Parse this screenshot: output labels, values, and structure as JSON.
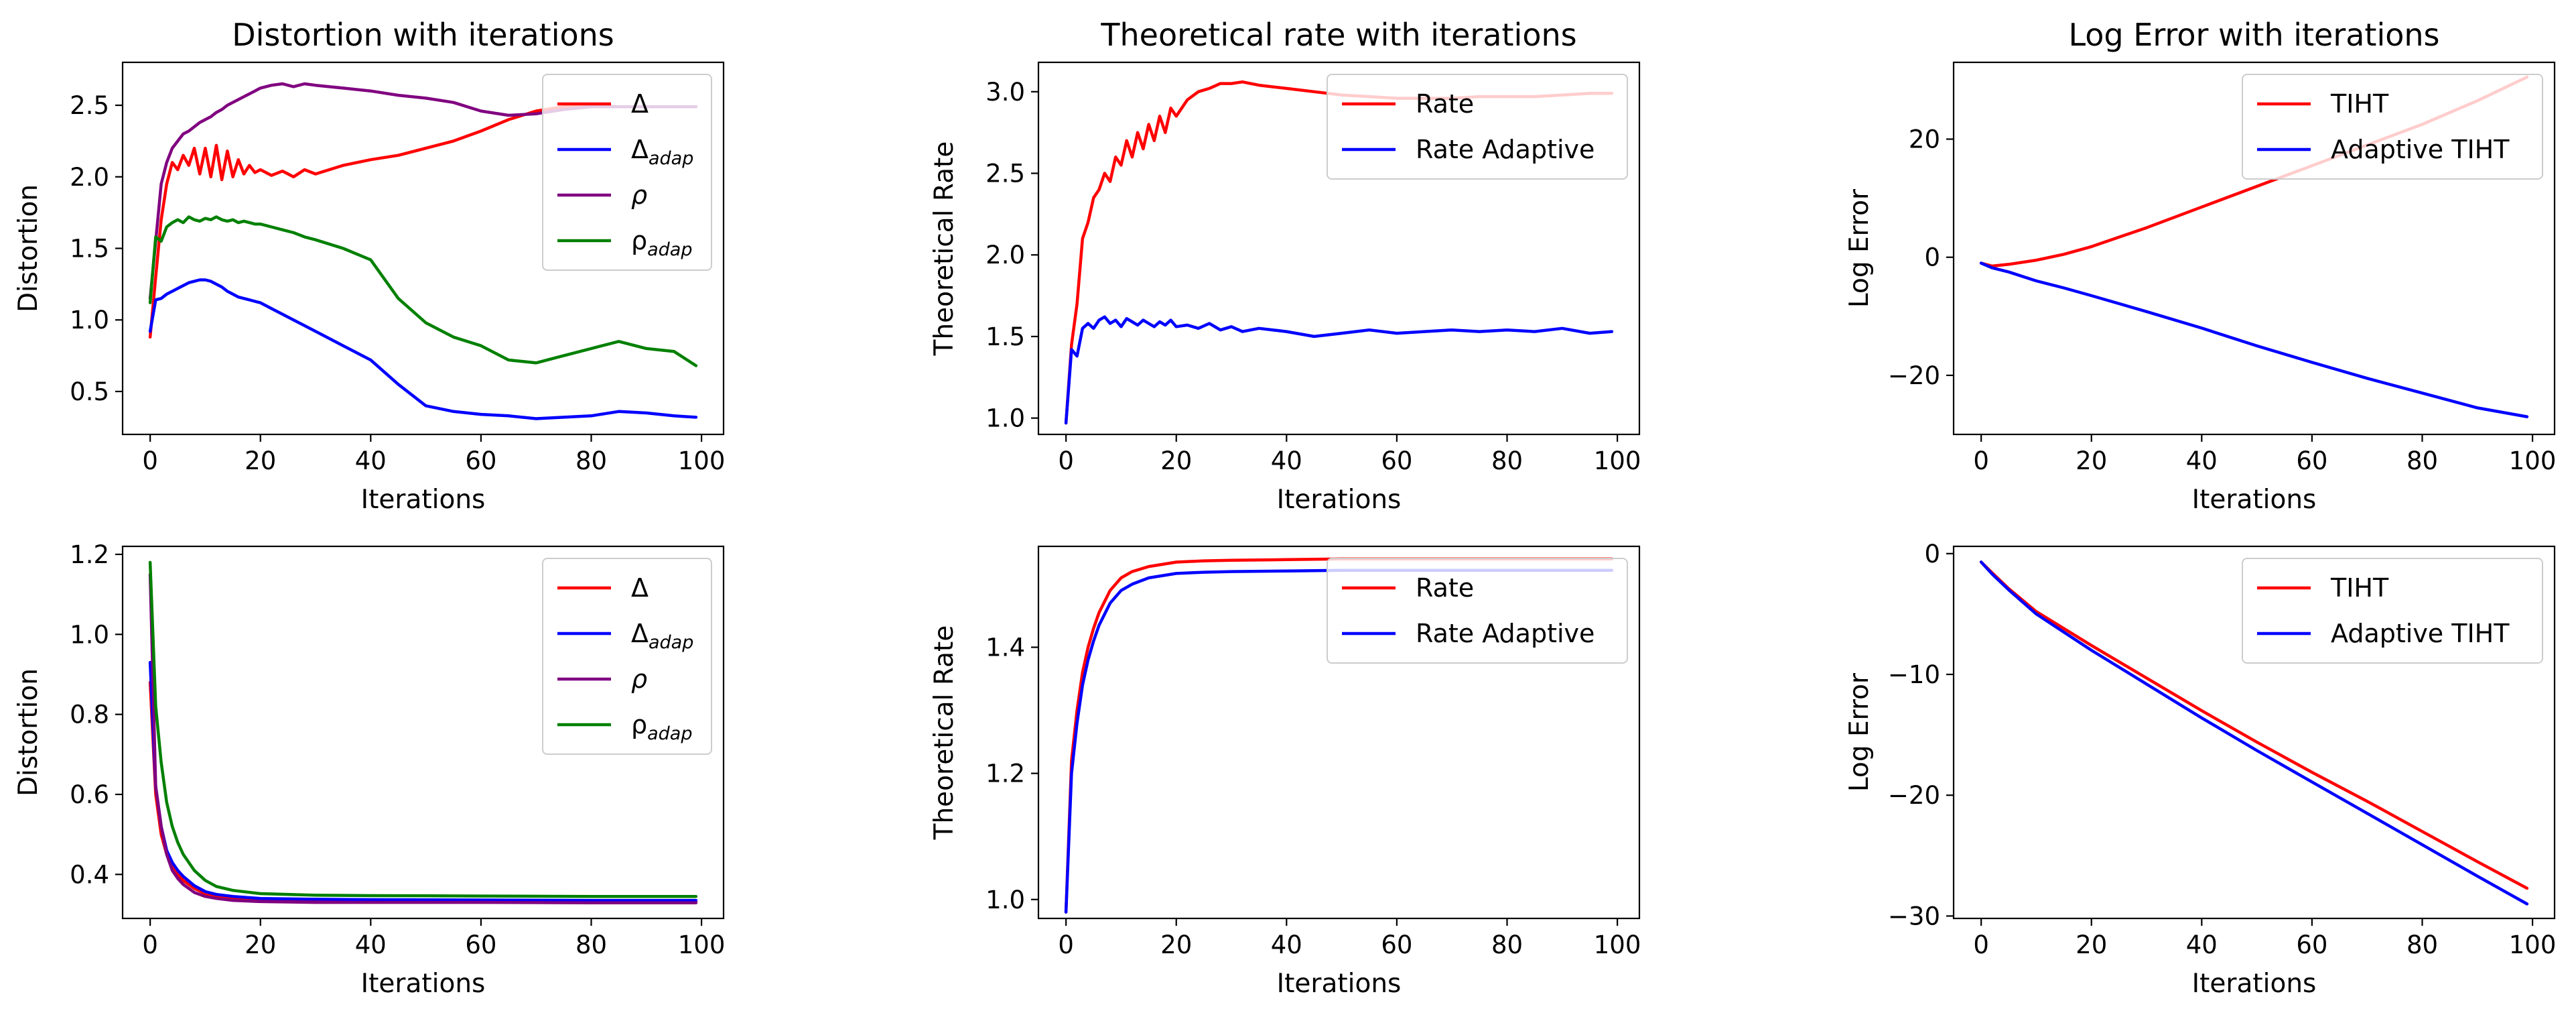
{
  "colors": {
    "red": "#ff0000",
    "blue": "#0000ff",
    "purple": "#800080",
    "green": "#008000"
  },
  "chart_data": [
    {
      "type": "line",
      "title": "Distortion with iterations",
      "xlabel": "Iterations",
      "ylabel": "Distortion",
      "xlim": [
        -5,
        104
      ],
      "ylim": [
        0.2,
        2.8
      ],
      "xticks": [
        0,
        20,
        40,
        60,
        80,
        100
      ],
      "yticks": [
        0.5,
        1.0,
        1.5,
        2.0,
        2.5
      ],
      "ytick_labels": [
        "0.5",
        "1.0",
        "1.5",
        "2.0",
        "2.5"
      ],
      "grid": false,
      "legend_position": "top-right",
      "x": [
        0,
        1,
        2,
        3,
        4,
        5,
        6,
        7,
        8,
        9,
        10,
        11,
        12,
        13,
        14,
        15,
        16,
        17,
        18,
        19,
        20,
        22,
        24,
        26,
        28,
        30,
        35,
        40,
        45,
        50,
        55,
        60,
        65,
        70,
        75,
        80,
        85,
        90,
        95,
        99
      ],
      "series": [
        {
          "name": "Δ",
          "name_base": "Δ",
          "name_sub": "",
          "color": "red",
          "values": [
            0.88,
            1.3,
            1.7,
            1.95,
            2.1,
            2.05,
            2.15,
            2.08,
            2.2,
            2.02,
            2.2,
            2.0,
            2.22,
            1.98,
            2.18,
            2.0,
            2.12,
            2.02,
            2.08,
            2.03,
            2.05,
            2.01,
            2.04,
            2.0,
            2.05,
            2.02,
            2.08,
            2.12,
            2.15,
            2.2,
            2.25,
            2.32,
            2.4,
            2.46,
            2.49,
            2.5,
            2.49,
            2.49,
            2.49,
            2.49
          ]
        },
        {
          "name": "Δadap",
          "name_base": "Δ",
          "name_sub": "adap",
          "color": "blue",
          "values": [
            0.92,
            1.14,
            1.15,
            1.18,
            1.2,
            1.22,
            1.24,
            1.26,
            1.27,
            1.28,
            1.28,
            1.27,
            1.25,
            1.23,
            1.2,
            1.18,
            1.16,
            1.15,
            1.14,
            1.13,
            1.12,
            1.08,
            1.04,
            1.0,
            0.96,
            0.92,
            0.82,
            0.72,
            0.55,
            0.4,
            0.36,
            0.34,
            0.33,
            0.31,
            0.32,
            0.33,
            0.36,
            0.35,
            0.33,
            0.32
          ]
        },
        {
          "name": "ρ",
          "name_base": "ρ",
          "name_sub": "",
          "color": "purple",
          "values": [
            1.15,
            1.55,
            1.95,
            2.1,
            2.2,
            2.25,
            2.3,
            2.32,
            2.35,
            2.38,
            2.4,
            2.42,
            2.45,
            2.47,
            2.5,
            2.52,
            2.54,
            2.56,
            2.58,
            2.6,
            2.62,
            2.64,
            2.65,
            2.63,
            2.65,
            2.64,
            2.62,
            2.6,
            2.57,
            2.55,
            2.52,
            2.46,
            2.43,
            2.44,
            2.47,
            2.49,
            2.49,
            2.49,
            2.49,
            2.49
          ]
        },
        {
          "name": "ρadap",
          "name_base": "ρ",
          "name_sub": "adap",
          "color": "green",
          "values": [
            1.12,
            1.58,
            1.55,
            1.65,
            1.68,
            1.7,
            1.68,
            1.72,
            1.7,
            1.69,
            1.71,
            1.7,
            1.72,
            1.7,
            1.69,
            1.7,
            1.68,
            1.69,
            1.68,
            1.67,
            1.67,
            1.65,
            1.63,
            1.61,
            1.58,
            1.56,
            1.5,
            1.42,
            1.15,
            0.98,
            0.88,
            0.82,
            0.72,
            0.7,
            0.75,
            0.8,
            0.85,
            0.8,
            0.78,
            0.68
          ]
        }
      ]
    },
    {
      "type": "line",
      "title": "Theoretical rate with iterations",
      "xlabel": "Iterations",
      "ylabel": "Theoretical Rate",
      "xlim": [
        -5,
        104
      ],
      "ylim": [
        0.9,
        3.18
      ],
      "xticks": [
        0,
        20,
        40,
        60,
        80,
        100
      ],
      "yticks": [
        1.0,
        1.5,
        2.0,
        2.5,
        3.0
      ],
      "ytick_labels": [
        "1.0",
        "1.5",
        "2.0",
        "2.5",
        "3.0"
      ],
      "grid": false,
      "legend_position": "top-right",
      "x": [
        0,
        1,
        2,
        3,
        4,
        5,
        6,
        7,
        8,
        9,
        10,
        11,
        12,
        13,
        14,
        15,
        16,
        17,
        18,
        19,
        20,
        22,
        24,
        26,
        28,
        30,
        32,
        35,
        40,
        45,
        50,
        55,
        60,
        65,
        70,
        75,
        80,
        85,
        90,
        95,
        99
      ],
      "series": [
        {
          "name": "Rate",
          "color": "red",
          "values": [
            0.97,
            1.45,
            1.7,
            2.1,
            2.2,
            2.35,
            2.4,
            2.5,
            2.45,
            2.6,
            2.55,
            2.7,
            2.6,
            2.75,
            2.65,
            2.8,
            2.7,
            2.85,
            2.75,
            2.9,
            2.85,
            2.95,
            3.0,
            3.02,
            3.05,
            3.05,
            3.06,
            3.04,
            3.02,
            3.0,
            2.98,
            2.97,
            2.96,
            2.96,
            2.96,
            2.97,
            2.97,
            2.97,
            2.98,
            2.99,
            2.99
          ]
        },
        {
          "name": "Rate Adaptive",
          "color": "blue",
          "values": [
            0.97,
            1.42,
            1.38,
            1.55,
            1.58,
            1.55,
            1.6,
            1.62,
            1.58,
            1.6,
            1.56,
            1.61,
            1.59,
            1.57,
            1.6,
            1.58,
            1.56,
            1.59,
            1.57,
            1.6,
            1.56,
            1.57,
            1.55,
            1.58,
            1.54,
            1.56,
            1.53,
            1.55,
            1.53,
            1.5,
            1.52,
            1.54,
            1.52,
            1.53,
            1.54,
            1.53,
            1.54,
            1.53,
            1.55,
            1.52,
            1.53
          ]
        }
      ]
    },
    {
      "type": "line",
      "title": "Log Error with iterations",
      "xlabel": "Iterations",
      "ylabel": "Log Error",
      "xlim": [
        -5,
        104
      ],
      "ylim": [
        -30,
        33
      ],
      "xticks": [
        0,
        20,
        40,
        60,
        80,
        100
      ],
      "yticks": [
        -20,
        0,
        20
      ],
      "ytick_labels": [
        "−20",
        "0",
        "20"
      ],
      "grid": false,
      "legend_position": "top-right",
      "x": [
        0,
        2,
        5,
        10,
        15,
        20,
        30,
        40,
        50,
        60,
        70,
        80,
        90,
        99
      ],
      "series": [
        {
          "name": "TIHT",
          "color": "red",
          "values": [
            -1.0,
            -1.5,
            -1.2,
            -0.5,
            0.5,
            1.8,
            5.0,
            8.5,
            12.0,
            15.5,
            19.0,
            22.5,
            26.5,
            30.5
          ]
        },
        {
          "name": "Adaptive TIHT",
          "color": "blue",
          "values": [
            -1.0,
            -1.8,
            -2.5,
            -4.0,
            -5.2,
            -6.5,
            -9.2,
            -12.0,
            -15.0,
            -17.8,
            -20.5,
            -23.0,
            -25.5,
            -27.0
          ]
        }
      ]
    },
    {
      "type": "line",
      "title": "",
      "xlabel": "Iterations",
      "ylabel": "Distortion",
      "xlim": [
        -5,
        104
      ],
      "ylim": [
        0.29,
        1.22
      ],
      "xticks": [
        0,
        20,
        40,
        60,
        80,
        100
      ],
      "yticks": [
        0.4,
        0.6,
        0.8,
        1.0,
        1.2
      ],
      "ytick_labels": [
        "0.4",
        "0.6",
        "0.8",
        "1.0",
        "1.2"
      ],
      "grid": false,
      "legend_position": "top-right",
      "x": [
        0,
        1,
        2,
        3,
        4,
        5,
        6,
        8,
        10,
        12,
        15,
        20,
        30,
        40,
        60,
        80,
        99
      ],
      "series": [
        {
          "name": "Δ",
          "name_base": "Δ",
          "name_sub": "",
          "color": "red",
          "values": [
            0.88,
            0.6,
            0.5,
            0.45,
            0.42,
            0.4,
            0.385,
            0.365,
            0.352,
            0.345,
            0.34,
            0.336,
            0.334,
            0.333,
            0.332,
            0.331,
            0.331
          ]
        },
        {
          "name": "Δadap",
          "name_base": "Δ",
          "name_sub": "adap",
          "color": "blue",
          "values": [
            0.93,
            0.62,
            0.52,
            0.46,
            0.43,
            0.41,
            0.395,
            0.372,
            0.357,
            0.35,
            0.345,
            0.34,
            0.338,
            0.337,
            0.336,
            0.335,
            0.335
          ]
        },
        {
          "name": "ρ",
          "name_base": "ρ",
          "name_sub": "",
          "color": "purple",
          "values": [
            1.15,
            0.62,
            0.52,
            0.45,
            0.41,
            0.39,
            0.375,
            0.355,
            0.345,
            0.34,
            0.335,
            0.332,
            0.33,
            0.33,
            0.33,
            0.329,
            0.329
          ]
        },
        {
          "name": "ρadap",
          "name_base": "ρ",
          "name_sub": "adap",
          "color": "green",
          "values": [
            1.18,
            0.82,
            0.68,
            0.58,
            0.52,
            0.48,
            0.45,
            0.41,
            0.385,
            0.37,
            0.36,
            0.352,
            0.348,
            0.347,
            0.346,
            0.345,
            0.345
          ]
        }
      ]
    },
    {
      "type": "line",
      "title": "",
      "xlabel": "Iterations",
      "ylabel": "Theoretical Rate",
      "xlim": [
        -5,
        104
      ],
      "ylim": [
        0.97,
        1.56
      ],
      "xticks": [
        0,
        20,
        40,
        60,
        80,
        100
      ],
      "yticks": [
        1.0,
        1.2,
        1.4
      ],
      "ytick_labels": [
        "1.0",
        "1.2",
        "1.4"
      ],
      "grid": false,
      "legend_position": "top-right",
      "x": [
        0,
        1,
        2,
        3,
        4,
        5,
        6,
        8,
        10,
        12,
        15,
        20,
        25,
        30,
        40,
        50,
        60,
        80,
        99
      ],
      "series": [
        {
          "name": "Rate",
          "color": "red",
          "values": [
            0.98,
            1.22,
            1.3,
            1.36,
            1.4,
            1.43,
            1.455,
            1.49,
            1.51,
            1.52,
            1.528,
            1.535,
            1.537,
            1.538,
            1.539,
            1.54,
            1.54,
            1.54,
            1.54
          ]
        },
        {
          "name": "Rate Adaptive",
          "color": "blue",
          "values": [
            0.98,
            1.2,
            1.28,
            1.34,
            1.38,
            1.41,
            1.435,
            1.47,
            1.49,
            1.5,
            1.51,
            1.517,
            1.519,
            1.52,
            1.521,
            1.522,
            1.522,
            1.522,
            1.522
          ]
        }
      ]
    },
    {
      "type": "line",
      "title": "",
      "xlabel": "Iterations",
      "ylabel": "Log Error",
      "xlim": [
        -5,
        104
      ],
      "ylim": [
        -30.2,
        0.6
      ],
      "xticks": [
        0,
        20,
        40,
        60,
        80,
        100
      ],
      "yticks": [
        -30,
        -20,
        -10,
        0
      ],
      "ytick_labels": [
        "−30",
        "−20",
        "−10",
        "0"
      ],
      "grid": false,
      "legend_position": "top-right",
      "x": [
        0,
        2,
        5,
        10,
        20,
        30,
        40,
        50,
        60,
        70,
        80,
        90,
        99
      ],
      "series": [
        {
          "name": "TIHT",
          "color": "red",
          "values": [
            -0.7,
            -1.6,
            -2.9,
            -4.8,
            -7.6,
            -10.3,
            -13.0,
            -15.6,
            -18.1,
            -20.5,
            -23.0,
            -25.5,
            -27.7
          ]
        },
        {
          "name": "Adaptive TIHT",
          "color": "blue",
          "values": [
            -0.7,
            -1.7,
            -3.0,
            -5.0,
            -8.0,
            -10.8,
            -13.6,
            -16.3,
            -18.9,
            -21.5,
            -24.1,
            -26.7,
            -29.0
          ]
        }
      ]
    }
  ]
}
